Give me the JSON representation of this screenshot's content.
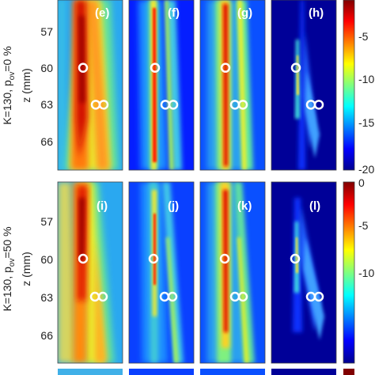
{
  "chart_data": {
    "type": "heatmap",
    "colormap": "jet",
    "colorbar": {
      "ticks_top": [
        -5,
        -10,
        -15,
        -20
      ],
      "ticks_bottom": [
        0,
        -5,
        -10
      ],
      "range": [
        -20,
        0
      ]
    },
    "rows": [
      {
        "ylabel_main": "K=130, p",
        "ylabel_sub": "ov",
        "ylabel_tail": "=0 %",
        "zlabel": "z (mm)",
        "zticks": [
          "57",
          "60",
          "63",
          "66"
        ],
        "panels": [
          "(e)",
          "(f)",
          "(g)",
          "(h)"
        ]
      },
      {
        "ylabel_main": "K=130, p",
        "ylabel_sub": "ov",
        "ylabel_tail": "=50 %",
        "zlabel": "z (mm)",
        "zticks": [
          "57",
          "60",
          "63",
          "66"
        ],
        "panels": [
          "(i)",
          "(j)",
          "(k)",
          "(l)"
        ]
      }
    ],
    "markers": {
      "single": "o",
      "double": "oo",
      "single_z": 60,
      "double_z": 63
    }
  }
}
